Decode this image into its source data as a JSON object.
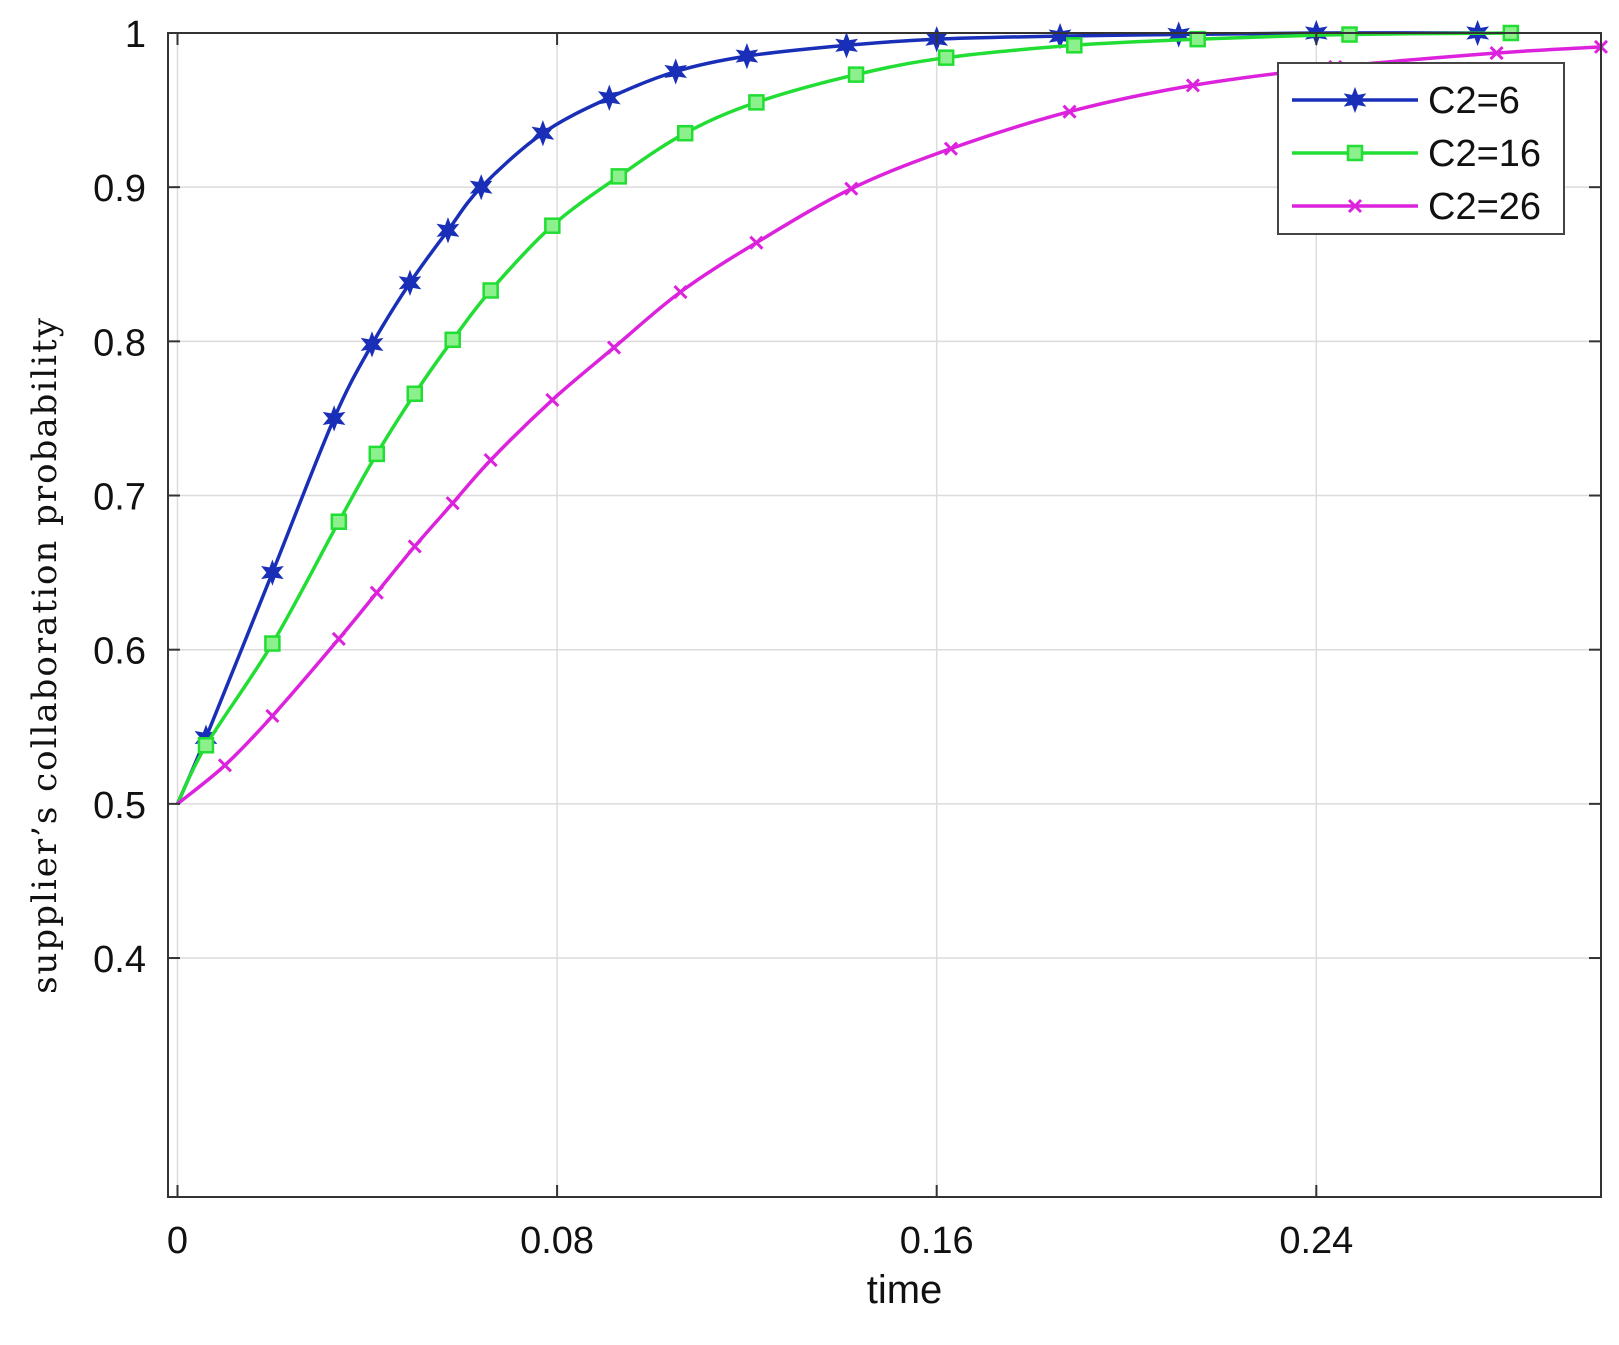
{
  "chart_data": {
    "type": "line",
    "title": "",
    "xlabel": "time",
    "ylabel": "supplier’s collaboration probability",
    "xlim": [
      -0.002,
      0.3
    ],
    "ylim": [
      0.245,
      1.0
    ],
    "xticks": [
      0,
      0.08,
      0.16,
      0.24
    ],
    "xtick_labels": [
      "0",
      "0.08",
      "0.16",
      "0.24"
    ],
    "yticks": [
      0.4,
      0.5,
      0.6,
      0.7,
      0.8,
      0.9,
      1.0
    ],
    "ytick_labels": [
      "0.4",
      "0.5",
      "0.6",
      "0.7",
      "0.8",
      "0.9",
      "1"
    ],
    "grid": true,
    "legend_position": "top-right",
    "series": [
      {
        "name": "C2=6",
        "color": "#1a2fb8",
        "marker": "star",
        "x": [
          0,
          0.006,
          0.02,
          0.033,
          0.041,
          0.049,
          0.057,
          0.064,
          0.077,
          0.091,
          0.105,
          0.12,
          0.141,
          0.16,
          0.186,
          0.211,
          0.24,
          0.274
        ],
        "y": [
          0.5,
          0.543,
          0.65,
          0.75,
          0.798,
          0.838,
          0.872,
          0.9,
          0.935,
          0.958,
          0.975,
          0.985,
          0.992,
          0.996,
          0.998,
          0.999,
          1.0,
          1.0
        ]
      },
      {
        "name": "C2=16",
        "color": "#22dd33",
        "marker": "square",
        "x": [
          0,
          0.006,
          0.02,
          0.034,
          0.042,
          0.05,
          0.058,
          0.066,
          0.079,
          0.093,
          0.107,
          0.122,
          0.143,
          0.162,
          0.189,
          0.215,
          0.247,
          0.281
        ],
        "y": [
          0.5,
          0.538,
          0.604,
          0.683,
          0.727,
          0.766,
          0.801,
          0.833,
          0.875,
          0.907,
          0.935,
          0.955,
          0.973,
          0.984,
          0.992,
          0.996,
          0.999,
          1.0
        ]
      },
      {
        "name": "C2=26",
        "color": "#dd22dd",
        "marker": "x",
        "x": [
          0,
          0.01,
          0.02,
          0.034,
          0.042,
          0.05,
          0.058,
          0.066,
          0.079,
          0.092,
          0.106,
          0.122,
          0.142,
          0.163,
          0.188,
          0.214,
          0.244,
          0.278,
          0.3
        ],
        "y": [
          0.5,
          0.525,
          0.557,
          0.607,
          0.637,
          0.667,
          0.695,
          0.723,
          0.762,
          0.796,
          0.832,
          0.864,
          0.899,
          0.925,
          0.949,
          0.966,
          0.978,
          0.987,
          0.991
        ]
      }
    ]
  }
}
